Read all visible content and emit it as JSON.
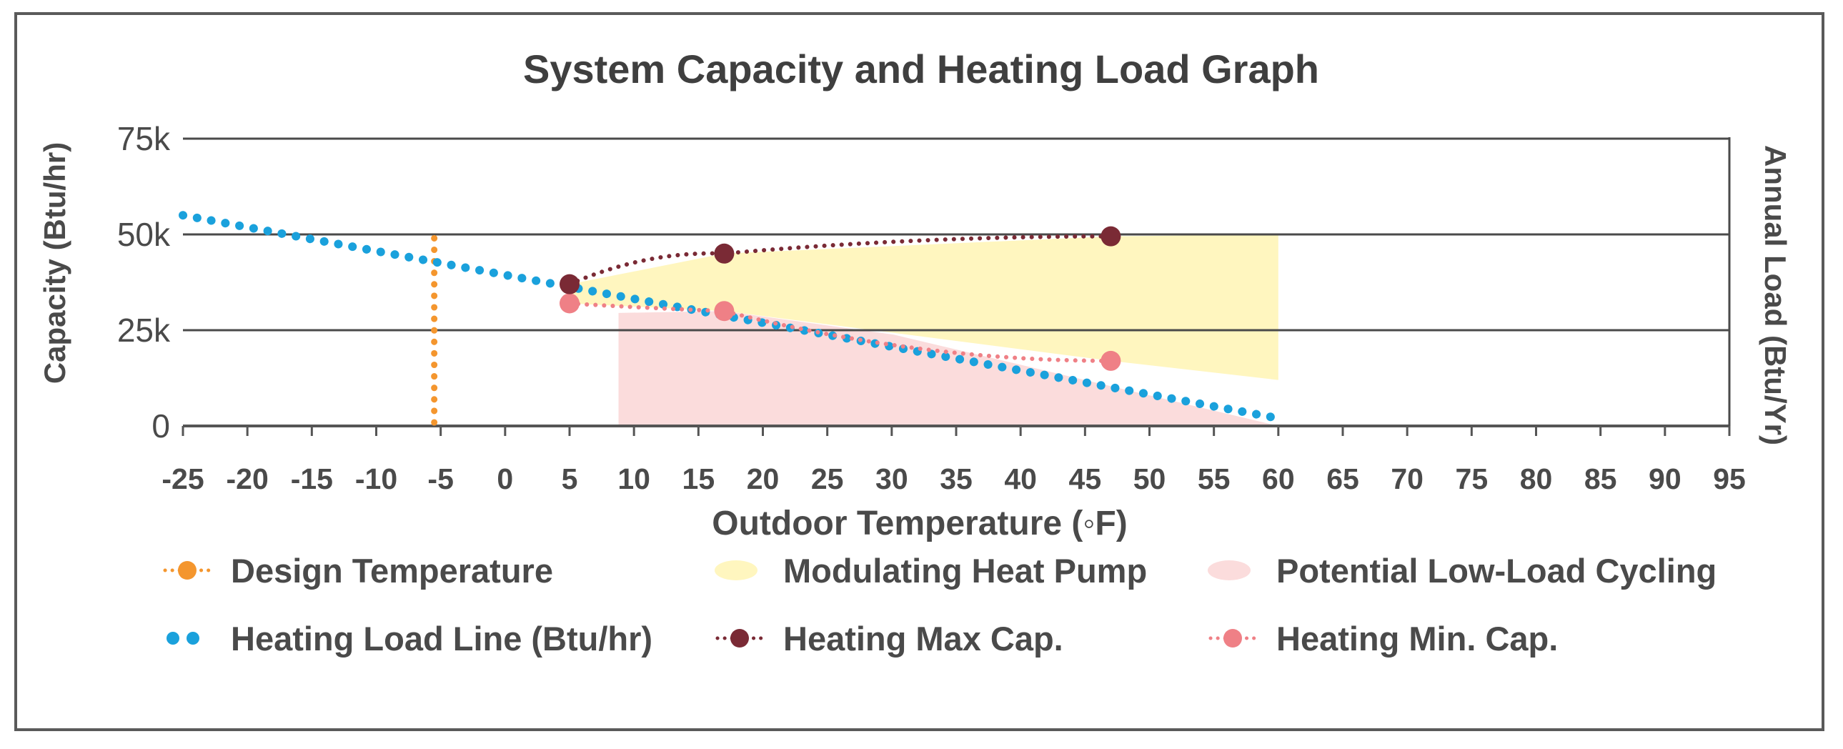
{
  "chart_data": {
    "type": "line",
    "title": "System Capacity and Heating Load Graph",
    "xlabel": "Outdoor Temperature (◦F)",
    "ylabel": "Capacity (Btu/hr)",
    "y2label": "Annual Load (Btu/Yr)",
    "xlim": [
      -25,
      95
    ],
    "ylim": [
      0,
      75000
    ],
    "xticks": [
      "-25",
      "-20",
      "-15",
      "-10",
      "-5",
      "0",
      "5",
      "10",
      "15",
      "20",
      "25",
      "30",
      "35",
      "40",
      "45",
      "50",
      "55",
      "60",
      "65",
      "70",
      "75",
      "80",
      "85",
      "90",
      "95"
    ],
    "yticks": [
      {
        "value": 0,
        "label": "0"
      },
      {
        "value": 25000,
        "label": "25k"
      },
      {
        "value": 50000,
        "label": "50k"
      },
      {
        "value": 75000,
        "label": "75k"
      }
    ],
    "grid": "horizontal",
    "legend_position": "bottom",
    "series": [
      {
        "name": "Design Temperature",
        "kind": "vline",
        "x": -5.5,
        "y_range": [
          0,
          49000
        ],
        "color": "#f4962e"
      },
      {
        "name": "Heating Load Line (Btu/hr)",
        "kind": "dotted-line",
        "x": [
          -25,
          60
        ],
        "values": [
          55000,
          2000
        ],
        "color": "#1aa1dc"
      },
      {
        "name": "Heating Max Cap.",
        "kind": "dotted-line-markers",
        "x": [
          5,
          17,
          47
        ],
        "values": [
          37000,
          45000,
          49500
        ],
        "color": "#7a2a35"
      },
      {
        "name": "Heating Min. Cap.",
        "kind": "dotted-line-markers",
        "x": [
          5,
          17,
          47
        ],
        "values": [
          32000,
          30000,
          17000
        ],
        "color": "#ef8086"
      }
    ],
    "areas": [
      {
        "name": "Modulating Heat Pump",
        "color": "#fff6bf",
        "points": [
          [
            5,
            37000
          ],
          [
            17,
            45000
          ],
          [
            47,
            49500
          ],
          [
            60,
            50000
          ],
          [
            60,
            12000
          ],
          [
            47,
            17000
          ],
          [
            17,
            30000
          ],
          [
            5,
            32000
          ]
        ]
      },
      {
        "name": "Potential Low-Load Cycling",
        "color": "#fbdcdc",
        "points": [
          [
            8.8,
            29500
          ],
          [
            17,
            30000
          ],
          [
            30.2,
            23800
          ],
          [
            60,
            0
          ],
          [
            8.8,
            0
          ]
        ]
      }
    ]
  },
  "legend": [
    {
      "label": "Design Temperature",
      "icon": "orange-dotted-line-marker-icon",
      "color": "#f4962e"
    },
    {
      "label": "Modulating Heat Pump",
      "icon": "yellow-area-swatch-icon",
      "color": "#fff6bf"
    },
    {
      "label": "Potential Low-Load Cycling",
      "icon": "pink-area-swatch-icon",
      "color": "#fbdcdc"
    },
    {
      "label": "Heating Load Line (Btu/hr)",
      "icon": "blue-dots-icon",
      "color": "#1aa1dc"
    },
    {
      "label": "Heating Max Cap.",
      "icon": "maroon-dotted-line-marker-icon",
      "color": "#7a2a35"
    },
    {
      "label": "Heating Min. Cap.",
      "icon": "pink-dotted-line-marker-icon",
      "color": "#ef8086"
    }
  ]
}
